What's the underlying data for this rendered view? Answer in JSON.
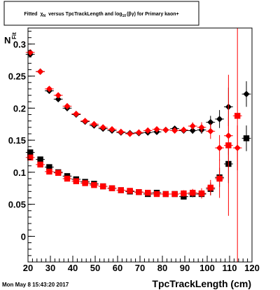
{
  "chart_data": {
    "type": "scatter",
    "title": "Fitted χ_N versus TpcTrackLength and log10(βγ) for Primary kaon+",
    "title_parts": {
      "t1": "Fitted",
      "t2": "χ",
      "t2sub": "N",
      "t3": "versus TpcTrackLength and log",
      "t3sub": "10",
      "t4": "(βγ) for Primary kaon+"
    },
    "xlabel": "TpcTrackLength (cm)",
    "ylabel_fragment": "Fit",
    "ylabel_fragment2": "N",
    "timestamp": "Mon May  8 15:43:20 2017",
    "xlim": [
      20,
      120
    ],
    "ylim": [
      -0.04,
      0.325
    ],
    "x_ticks": [
      {
        "value": 20,
        "label": "20"
      },
      {
        "value": 30,
        "label": "30"
      },
      {
        "value": 40,
        "label": "40"
      },
      {
        "value": 50,
        "label": "50"
      },
      {
        "value": 60,
        "label": "60"
      },
      {
        "value": 70,
        "label": "70"
      },
      {
        "value": 80,
        "label": "80"
      },
      {
        "value": 90,
        "label": "90"
      },
      {
        "value": 100,
        "label": "100"
      },
      {
        "value": 110,
        "label": "110"
      },
      {
        "value": 120,
        "label": "120"
      }
    ],
    "y_ticks": [
      {
        "value": 0,
        "label": "0"
      },
      {
        "value": 0.05,
        "label": "0.05"
      },
      {
        "value": 0.1,
        "label": "0.1"
      },
      {
        "value": 0.15,
        "label": "0.15"
      },
      {
        "value": 0.2,
        "label": "0.2"
      },
      {
        "value": 0.25,
        "label": "0.25"
      },
      {
        "value": 0.3,
        "label": "0.3"
      }
    ],
    "grid": false,
    "colors": {
      "black": "#000000",
      "red": "#ff0000"
    },
    "series": [
      {
        "color": "#000000",
        "marker": "diamond",
        "points": [
          {
            "x": 21,
            "y": 0.284,
            "ey": 0.003
          },
          {
            "x": 25.5,
            "y": 0.257,
            "ey": 0.002
          },
          {
            "x": 29.5,
            "y": 0.227,
            "ey": 0.002
          },
          {
            "x": 33.5,
            "y": 0.214,
            "ey": 0.002
          },
          {
            "x": 37.5,
            "y": 0.2,
            "ey": 0.002
          },
          {
            "x": 41.5,
            "y": 0.19,
            "ey": 0.002
          },
          {
            "x": 45.5,
            "y": 0.179,
            "ey": 0.002
          },
          {
            "x": 49.5,
            "y": 0.173,
            "ey": 0.002
          },
          {
            "x": 53.5,
            "y": 0.168,
            "ey": 0.002
          },
          {
            "x": 57.5,
            "y": 0.165,
            "ey": 0.002
          },
          {
            "x": 61.5,
            "y": 0.162,
            "ey": 0.002
          },
          {
            "x": 65.5,
            "y": 0.161,
            "ey": 0.002
          },
          {
            "x": 69.5,
            "y": 0.161,
            "ey": 0.002
          },
          {
            "x": 73.5,
            "y": 0.162,
            "ey": 0.002
          },
          {
            "x": 77.5,
            "y": 0.163,
            "ey": 0.003
          },
          {
            "x": 81.5,
            "y": 0.166,
            "ey": 0.003
          },
          {
            "x": 85.5,
            "y": 0.168,
            "ey": 0.003
          },
          {
            "x": 89.5,
            "y": 0.165,
            "ey": 0.004
          },
          {
            "x": 93.5,
            "y": 0.165,
            "ey": 0.005
          },
          {
            "x": 97.5,
            "y": 0.166,
            "ey": 0.006
          },
          {
            "x": 101.5,
            "y": 0.178,
            "ey": 0.01
          },
          {
            "x": 105.5,
            "y": 0.183,
            "ey": 0.014
          },
          {
            "x": 109.5,
            "y": 0.202,
            "ey": 0.03
          },
          {
            "x": 117.5,
            "y": 0.222,
            "ey": 0.02
          }
        ]
      },
      {
        "color": "#ff0000",
        "marker": "diamond",
        "points": [
          {
            "x": 21,
            "y": 0.287,
            "ey": 0.003
          },
          {
            "x": 25.5,
            "y": 0.257,
            "ey": 0.002
          },
          {
            "x": 29.5,
            "y": 0.23,
            "ey": 0.002
          },
          {
            "x": 33.5,
            "y": 0.22,
            "ey": 0.002
          },
          {
            "x": 37.5,
            "y": 0.203,
            "ey": 0.002
          },
          {
            "x": 41.5,
            "y": 0.191,
            "ey": 0.002
          },
          {
            "x": 45.5,
            "y": 0.18,
            "ey": 0.002
          },
          {
            "x": 49.5,
            "y": 0.175,
            "ey": 0.002
          },
          {
            "x": 53.5,
            "y": 0.17,
            "ey": 0.002
          },
          {
            "x": 57.5,
            "y": 0.167,
            "ey": 0.002
          },
          {
            "x": 61.5,
            "y": 0.163,
            "ey": 0.002
          },
          {
            "x": 65.5,
            "y": 0.16,
            "ey": 0.002
          },
          {
            "x": 69.5,
            "y": 0.162,
            "ey": 0.002
          },
          {
            "x": 73.5,
            "y": 0.165,
            "ey": 0.003
          },
          {
            "x": 77.5,
            "y": 0.167,
            "ey": 0.003
          },
          {
            "x": 81.5,
            "y": 0.166,
            "ey": 0.003
          },
          {
            "x": 85.5,
            "y": 0.165,
            "ey": 0.004
          },
          {
            "x": 89.5,
            "y": 0.166,
            "ey": 0.005
          },
          {
            "x": 93.5,
            "y": 0.172,
            "ey": 0.006
          },
          {
            "x": 97.5,
            "y": 0.17,
            "ey": 0.008
          },
          {
            "x": 101.5,
            "y": 0.164,
            "ey": 0.012
          },
          {
            "x": 105.5,
            "y": 0.138,
            "ey": 0.02
          },
          {
            "x": 109.5,
            "y": 0.157,
            "ey": 0.03
          },
          {
            "x": 113.5,
            "y": 0.138,
            "ey": 0.035
          }
        ]
      },
      {
        "color": "#000000",
        "marker": "square",
        "points": [
          {
            "x": 21,
            "y": 0.131,
            "ey": 0.003
          },
          {
            "x": 25.5,
            "y": 0.12,
            "ey": 0.002
          },
          {
            "x": 29.5,
            "y": 0.108,
            "ey": 0.002
          },
          {
            "x": 33.5,
            "y": 0.1,
            "ey": 0.002
          },
          {
            "x": 37.5,
            "y": 0.094,
            "ey": 0.002
          },
          {
            "x": 41.5,
            "y": 0.089,
            "ey": 0.002
          },
          {
            "x": 45.5,
            "y": 0.085,
            "ey": 0.002
          },
          {
            "x": 49.5,
            "y": 0.082,
            "ey": 0.002
          },
          {
            "x": 53.5,
            "y": 0.078,
            "ey": 0.002
          },
          {
            "x": 57.5,
            "y": 0.075,
            "ey": 0.002
          },
          {
            "x": 61.5,
            "y": 0.072,
            "ey": 0.002
          },
          {
            "x": 65.5,
            "y": 0.07,
            "ey": 0.002
          },
          {
            "x": 69.5,
            "y": 0.069,
            "ey": 0.002
          },
          {
            "x": 73.5,
            "y": 0.066,
            "ey": 0.002
          },
          {
            "x": 77.5,
            "y": 0.068,
            "ey": 0.003
          },
          {
            "x": 81.5,
            "y": 0.066,
            "ey": 0.003
          },
          {
            "x": 85.5,
            "y": 0.066,
            "ey": 0.003
          },
          {
            "x": 89.5,
            "y": 0.062,
            "ey": 0.004
          },
          {
            "x": 93.5,
            "y": 0.066,
            "ey": 0.005
          },
          {
            "x": 97.5,
            "y": 0.066,
            "ey": 0.006
          },
          {
            "x": 101.5,
            "y": 0.074,
            "ey": 0.01
          },
          {
            "x": 105.5,
            "y": 0.092,
            "ey": 0.015
          },
          {
            "x": 109.5,
            "y": 0.113,
            "ey": 0.03
          },
          {
            "x": 117.5,
            "y": 0.153,
            "ey": 0.02
          }
        ]
      },
      {
        "color": "#ff0000",
        "marker": "square",
        "points": [
          {
            "x": 21,
            "y": 0.123,
            "ey": 0.003
          },
          {
            "x": 25.5,
            "y": 0.112,
            "ey": 0.002
          },
          {
            "x": 29.5,
            "y": 0.101,
            "ey": 0.002
          },
          {
            "x": 33.5,
            "y": 0.099,
            "ey": 0.002
          },
          {
            "x": 37.5,
            "y": 0.09,
            "ey": 0.002
          },
          {
            "x": 41.5,
            "y": 0.086,
            "ey": 0.002
          },
          {
            "x": 45.5,
            "y": 0.083,
            "ey": 0.002
          },
          {
            "x": 49.5,
            "y": 0.08,
            "ey": 0.002
          },
          {
            "x": 53.5,
            "y": 0.078,
            "ey": 0.002
          },
          {
            "x": 57.5,
            "y": 0.075,
            "ey": 0.002
          },
          {
            "x": 61.5,
            "y": 0.072,
            "ey": 0.002
          },
          {
            "x": 65.5,
            "y": 0.071,
            "ey": 0.002
          },
          {
            "x": 69.5,
            "y": 0.069,
            "ey": 0.002
          },
          {
            "x": 73.5,
            "y": 0.068,
            "ey": 0.003
          },
          {
            "x": 77.5,
            "y": 0.066,
            "ey": 0.003
          },
          {
            "x": 81.5,
            "y": 0.066,
            "ey": 0.003
          },
          {
            "x": 85.5,
            "y": 0.066,
            "ey": 0.004
          },
          {
            "x": 89.5,
            "y": 0.067,
            "ey": 0.005
          },
          {
            "x": 93.5,
            "y": 0.068,
            "ey": 0.006
          },
          {
            "x": 97.5,
            "y": 0.067,
            "ey": 0.008
          },
          {
            "x": 101.5,
            "y": 0.076,
            "ey": 0.012
          },
          {
            "x": 105.5,
            "y": 0.09,
            "ey": 0.03
          },
          {
            "x": 109.5,
            "y": 0.142,
            "ey": 0.11
          },
          {
            "x": 113.5,
            "y": 0.188,
            "ey": 0.24
          }
        ]
      }
    ]
  }
}
